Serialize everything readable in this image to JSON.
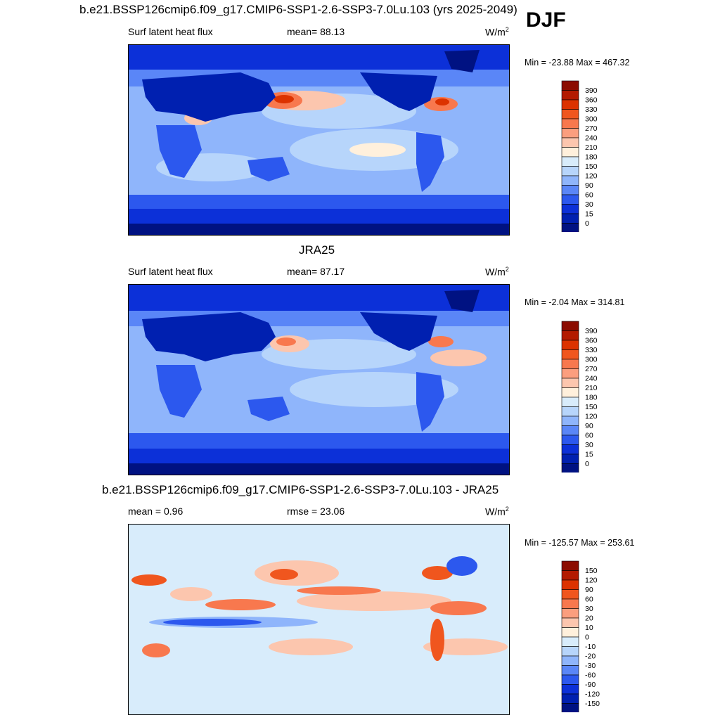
{
  "season": "DJF",
  "units_base": "W/m",
  "units_exp": "2",
  "panels": [
    {
      "title": "b.e21.BSSP126cmip6.f09_g17.CMIP6-SSP1-2.6-SSP3-7.0Lu.103 (yrs 2025-2049)",
      "left_label": "Surf latent heat flux",
      "center_label": "mean=  88.13",
      "minmax": "Min = -23.88 Max = 467.32",
      "colorbar": {
        "labels": [
          "390",
          "360",
          "330",
          "300",
          "270",
          "240",
          "210",
          "180",
          "150",
          "120",
          "90",
          "60",
          "30",
          "15",
          "0"
        ],
        "colors": [
          "#8b0c00",
          "#b31a00",
          "#dc3200",
          "#f0561e",
          "#f8784e",
          "#fb9e7e",
          "#fcc6ae",
          "#fff0dc",
          "#d8ecfb",
          "#b7d5fb",
          "#8fb5fb",
          "#5a86f7",
          "#2c58ee",
          "#0c30d8",
          "#0020b0",
          "#001282"
        ]
      },
      "chart_data": {
        "type": "heatmap",
        "title": "b.e21.BSSP126cmip6.f09_g17.CMIP6-SSP1-2.6-SSP3-7.0Lu.103 (yrs 2025-2049)",
        "variable": "Surf latent heat flux",
        "mean": 88.13,
        "min": -23.88,
        "max": 467.32,
        "contour_levels": [
          0,
          15,
          30,
          60,
          90,
          120,
          150,
          180,
          210,
          240,
          270,
          300,
          330,
          360,
          390
        ]
      }
    },
    {
      "title": "JRA25",
      "left_label": "Surf latent heat flux",
      "center_label": "mean=  87.17",
      "minmax": "Min =  -2.04 Max = 314.81",
      "colorbar": {
        "labels": [
          "390",
          "360",
          "330",
          "300",
          "270",
          "240",
          "210",
          "180",
          "150",
          "120",
          "90",
          "60",
          "30",
          "15",
          "0"
        ],
        "colors": [
          "#8b0c00",
          "#b31a00",
          "#dc3200",
          "#f0561e",
          "#f8784e",
          "#fb9e7e",
          "#fcc6ae",
          "#fff0dc",
          "#d8ecfb",
          "#b7d5fb",
          "#8fb5fb",
          "#5a86f7",
          "#2c58ee",
          "#0c30d8",
          "#0020b0",
          "#001282"
        ]
      },
      "chart_data": {
        "type": "heatmap",
        "title": "JRA25",
        "variable": "Surf latent heat flux",
        "mean": 87.17,
        "min": -2.04,
        "max": 314.81,
        "contour_levels": [
          0,
          15,
          30,
          60,
          90,
          120,
          150,
          180,
          210,
          240,
          270,
          300,
          330,
          360,
          390
        ]
      }
    },
    {
      "title": "b.e21.BSSP126cmip6.f09_g17.CMIP6-SSP1-2.6-SSP3-7.0Lu.103 - JRA25",
      "left_label": "mean =   0.96",
      "center_label": "rmse =  23.06",
      "minmax": "Min = -125.57 Max = 253.61",
      "colorbar": {
        "labels": [
          "150",
          "120",
          "90",
          "60",
          "30",
          "20",
          "10",
          "0",
          "-10",
          "-20",
          "-30",
          "-60",
          "-90",
          "-120",
          "-150"
        ],
        "colors": [
          "#8b0c00",
          "#b31a00",
          "#dc3200",
          "#f0561e",
          "#f8784e",
          "#fb9e7e",
          "#fcc6ae",
          "#fff0dc",
          "#d8ecfb",
          "#b7d5fb",
          "#8fb5fb",
          "#5a86f7",
          "#2c58ee",
          "#0c30d8",
          "#0020b0",
          "#001282"
        ]
      },
      "chart_data": {
        "type": "heatmap",
        "title": "b.e21.BSSP126cmip6.f09_g17.CMIP6-SSP1-2.6-SSP3-7.0Lu.103 - JRA25",
        "mean": 0.96,
        "rmse": 23.06,
        "min": -125.57,
        "max": 253.61,
        "contour_levels": [
          -150,
          -120,
          -90,
          -60,
          -30,
          -20,
          -10,
          0,
          10,
          20,
          30,
          60,
          90,
          120,
          150
        ]
      }
    }
  ]
}
